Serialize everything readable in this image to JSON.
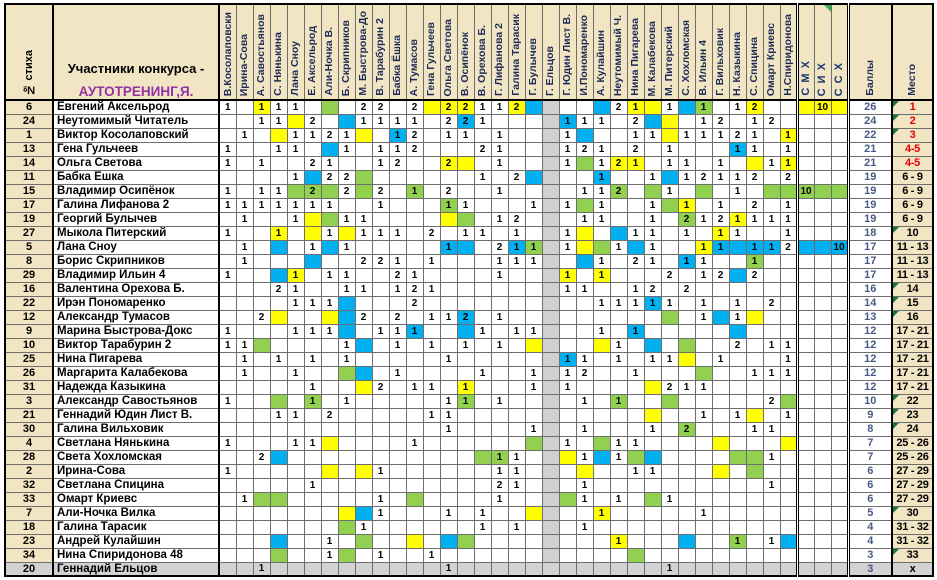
{
  "title": {
    "line1": "Участники конкурса -",
    "line2": "АУТОТРЕНИНГ,Я."
  },
  "headers": {
    "num": "№ стиха",
    "score": "Баллы",
    "place": "Место",
    "special": [
      "С М Х",
      "С И Х",
      "С С Х"
    ],
    "voters": [
      "В.Косолаповски",
      "Ирина-Сова",
      "А. Савостьянов",
      "С. Нянькина",
      "Лана Сноу",
      "Е. Аксельрод",
      "Али-Ночка В.",
      "Б. Скрипников",
      "М. Быстрова-До",
      "В. Тарабурин 2",
      "Бабка Ёшка",
      "А. Тумасов",
      "Гена Гульчеев",
      "Ольга Светова",
      "В. Осипёнок",
      "В. Орехова Б.",
      "Г. Лифанова 2",
      "Галина Тарасик",
      "Г. Булычев",
      "Г. Ельцов",
      "Г. Юдин Лист В.",
      "И.Пономаренко",
      "А. Кулайшин",
      "Неутомимый Ч.",
      "Нина Пигарева",
      "М. Калабекова",
      "М. Питерский",
      "С. Хохломская",
      "В. Ильин 4",
      "Г. Вильховик",
      "Н. Казыкина",
      "С. Спицина",
      "Омарт Криевс",
      "Н.Спиридонова"
    ]
  },
  "colors": {
    "yellow": "#ffff00",
    "green": "#92d050",
    "blue": "#00b0f0",
    "cream": "#f2e5c4",
    "gray_col": "#d0d0d0",
    "gray_row": "#d2d2d2",
    "accent_title": "#9231a8",
    "place_red": "#e80000",
    "score_text": "#475a85"
  },
  "gray_column": 20,
  "chart_data": {
    "type": "table",
    "title": "Участники конкурса - АУТОТРЕНИНГ,Я.",
    "note": "Vote matrix: rows = poems/participants, columns = voters; cell value = points given; colors mark special sympathies (СМХ green, СИХ yellow, ССХ blue)."
  },
  "rows": [
    {
      "num": "6",
      "name": "Евгений Аксельрод",
      "score": "26",
      "place": "1",
      "red": true,
      "marker": true,
      "cells": {
        "1": "1",
        "3": "1y",
        "4": "1",
        "5": "1",
        "7": "g",
        "9": "2",
        "10": "2",
        "12": "2",
        "13": "y",
        "14": "2y",
        "15": "2y",
        "16": "1",
        "17": "1",
        "18": "2y",
        "19": "b",
        "23": "b",
        "24": "2",
        "25": "1y",
        "26": "y",
        "27": "1",
        "28": "b",
        "29": "1g",
        "31": "1",
        "32": "2y"
      },
      "smx": "y",
      "six": "10y",
      "ssx": "y"
    },
    {
      "num": "24",
      "name": "Неутомимый Читатель",
      "score": "24",
      "place": "2",
      "red": true,
      "marker": true,
      "cells": {
        "3": "1",
        "4": "1",
        "5": "y",
        "6": "2",
        "8": "b",
        "9": "1",
        "10": "1",
        "11": "1",
        "12": "1",
        "14": "2",
        "15": "2b",
        "16": "1",
        "21": "1b",
        "22": "1",
        "23": "1",
        "25": "2",
        "26": "b",
        "27": "y",
        "29": "1",
        "30": "2",
        "32": "1",
        "33": "2"
      },
      "smx": "",
      "six": "",
      "ssx": ""
    },
    {
      "num": "1",
      "name": "Виктор Косолаповский",
      "score": "22",
      "place": "3",
      "red": true,
      "marker": true,
      "cells": {
        "2": "1",
        "4": "y",
        "5": "1",
        "6": "1",
        "7": "2",
        "8": "1",
        "9": "y",
        "11": "1b",
        "12": "2",
        "14": "1",
        "15": "1",
        "17": "1",
        "21": "1",
        "22": "b",
        "25": "1",
        "26": "1",
        "27": "y",
        "28": "1",
        "29": "1",
        "30": "1",
        "31": "2",
        "32": "1",
        "34": "1y"
      },
      "smx": "",
      "six": "",
      "ssx": ""
    },
    {
      "num": "13",
      "name": "Гена Гульчеев",
      "score": "21",
      "place": "4-5",
      "red": true,
      "marker": false,
      "cells": {
        "1": "1",
        "4": "1",
        "5": "1",
        "7": "b",
        "8": "1",
        "10": "1",
        "11": "1",
        "12": "2",
        "16": "2",
        "17": "1",
        "21": "1",
        "22": "2",
        "23": "1",
        "25": "2",
        "27": "1",
        "31": "1b",
        "32": "1",
        "34": "1"
      },
      "smx": "",
      "six": "",
      "ssx": ""
    },
    {
      "num": "14",
      "name": "Ольга Светова",
      "score": "21",
      "place": "4-5",
      "red": true,
      "marker": false,
      "cells": {
        "1": "1",
        "3": "1",
        "6": "2",
        "7": "1",
        "10": "1",
        "11": "2",
        "14": "2y",
        "15": "y",
        "17": "1",
        "21": "1",
        "22": "g",
        "23": "1",
        "24": "2y",
        "25": "1y",
        "27": "1",
        "28": "1",
        "30": "1",
        "32": "y",
        "33": "1",
        "34": "1y"
      },
      "smx": "",
      "six": "",
      "ssx": ""
    },
    {
      "num": "11",
      "name": "Бабка Ешка",
      "score": "19",
      "place": "6 - 9",
      "red": false,
      "marker": false,
      "cells": {
        "5": "1",
        "6": "b",
        "7": "2",
        "8": "2",
        "9": "g",
        "16": "1",
        "18": "2",
        "19": "b",
        "23": "1b",
        "26": "1",
        "27": "b",
        "28": "1",
        "29": "2",
        "30": "1",
        "31": "1",
        "32": "2",
        "34": "2"
      },
      "smx": "",
      "six": "",
      "ssx": ""
    },
    {
      "num": "15",
      "name": "Владимир Осипёнок",
      "score": "19",
      "place": "6 - 9",
      "red": false,
      "marker": false,
      "cells": {
        "1": "1",
        "3": "1",
        "4": "1",
        "5": "g",
        "6": "2g",
        "7": "g",
        "8": "2",
        "9": "g",
        "10": "2",
        "12": "1g",
        "14": "2",
        "17": "1",
        "22": "1",
        "23": "1",
        "24": "2g",
        "26": "g",
        "27": "1",
        "29": "g",
        "31": "1",
        "33": "g",
        "34": "g"
      },
      "smx": "10g",
      "six": "g",
      "ssx": "g"
    },
    {
      "num": "17",
      "name": "Галина Лифанова 2",
      "score": "19",
      "place": "6 - 9",
      "red": false,
      "marker": false,
      "cells": {
        "1": "1",
        "2": "1",
        "3": "1",
        "4": "1",
        "5": "1",
        "6": "1",
        "7": "1",
        "10": "1",
        "14": "1g",
        "15": "1",
        "19": "1",
        "21": "1",
        "22": "g",
        "23": "1",
        "26": "1",
        "27": "g",
        "28": "1y",
        "30": "1",
        "32": "2",
        "34": "1"
      },
      "smx": "",
      "six": "",
      "ssx": ""
    },
    {
      "num": "19",
      "name": "Георгий Булычев",
      "score": "19",
      "place": "6 - 9",
      "red": false,
      "marker": false,
      "cells": {
        "2": "1",
        "5": "1",
        "6": "y",
        "7": "g",
        "8": "1",
        "9": "1",
        "14": "y",
        "15": "g",
        "17": "1",
        "18": "2",
        "22": "1",
        "23": "1",
        "26": "1",
        "28": "2g",
        "29": "1",
        "30": "2",
        "31": "1y",
        "32": "1",
        "33": "1",
        "34": "1"
      },
      "smx": "",
      "six": "",
      "ssx": ""
    },
    {
      "num": "27",
      "name": "Мыкола Питерский",
      "score": "18",
      "place": "10",
      "red": false,
      "marker": true,
      "cells": {
        "1": "1",
        "4": "1y",
        "6": "y",
        "7": "1",
        "8": "y",
        "9": "1",
        "10": "1",
        "11": "1",
        "13": "2",
        "15": "1",
        "16": "1",
        "18": "1",
        "21": "1",
        "22": "y",
        "24": "b",
        "25": "1",
        "26": "1",
        "28": "1",
        "30": "1y",
        "31": "1",
        "34": "1"
      },
      "smx": "",
      "six": "",
      "ssx": ""
    },
    {
      "num": "5",
      "name": "Лана Сноу",
      "score": "17",
      "place": "11 - 13",
      "red": false,
      "marker": false,
      "cells": {
        "2": "1",
        "4": "b",
        "6": "1",
        "7": "b",
        "8": "1",
        "14": "1b",
        "15": "b",
        "17": "2",
        "18": "1b",
        "19": "1g",
        "21": "1",
        "22": "y",
        "23": "g",
        "24": "1",
        "25": "b",
        "26": "1",
        "29": "1y",
        "30": "1b",
        "31": "b",
        "32": "1b",
        "33": "1b",
        "34": "2"
      },
      "smx": "b",
      "six": "b",
      "ssx": "10b"
    },
    {
      "num": "8",
      "name": "Борис Скрипников",
      "score": "17",
      "place": "11 - 13",
      "red": false,
      "marker": false,
      "cells": {
        "2": "1",
        "6": "b",
        "9": "2",
        "10": "2",
        "11": "1",
        "13": "1",
        "17": "1",
        "18": "1",
        "19": "1",
        "22": "b",
        "23": "1",
        "25": "2",
        "26": "1",
        "28": "1b",
        "29": "1",
        "32": "1g"
      },
      "smx": "",
      "six": "",
      "ssx": ""
    },
    {
      "num": "29",
      "name": "Владимир Ильин 4",
      "score": "17",
      "place": "11 - 13",
      "red": false,
      "marker": false,
      "cells": {
        "1": "1",
        "4": "b",
        "5": "1y",
        "7": "1",
        "8": "1",
        "11": "2",
        "12": "1",
        "17": "1",
        "21": "1y",
        "23": "1y",
        "27": "2",
        "29": "1",
        "30": "2",
        "31": "b",
        "32": "2"
      },
      "smx": "",
      "six": "",
      "ssx": ""
    },
    {
      "num": "16",
      "name": "Валентина Орехова Б.",
      "score": "16",
      "place": "14",
      "red": false,
      "marker": true,
      "cells": {
        "4": "2",
        "5": "1",
        "8": "1",
        "9": "1",
        "11": "1",
        "12": "2",
        "13": "1",
        "21": "1",
        "22": "1",
        "25": "1",
        "26": "2",
        "28": "2"
      },
      "smx": "",
      "six": "",
      "ssx": ""
    },
    {
      "num": "22",
      "name": "Ирэн Пономаренко",
      "score": "14",
      "place": "15",
      "red": false,
      "marker": true,
      "cells": {
        "5": "1",
        "6": "1",
        "7": "1",
        "8": "b",
        "12": "2",
        "23": "1",
        "24": "1",
        "25": "1",
        "26": "1b",
        "27": "1",
        "29": "1",
        "31": "1",
        "33": "2"
      },
      "smx": "",
      "six": "",
      "ssx": ""
    },
    {
      "num": "12",
      "name": "Александр Тумасов",
      "score": "13",
      "place": "16",
      "red": false,
      "marker": true,
      "cells": {
        "3": "2",
        "4": "y",
        "7": "y",
        "8": "b",
        "9": "2",
        "11": "2",
        "13": "1",
        "14": "1",
        "15": "2b",
        "17": "1",
        "27": "g",
        "29": "1",
        "30": "b",
        "31": "1",
        "32": "y"
      },
      "smx": "",
      "six": "",
      "ssx": ""
    },
    {
      "num": "9",
      "name": "Марина Быстрова-Докс",
      "score": "12",
      "place": "17 - 21",
      "red": false,
      "marker": false,
      "cells": {
        "1": "1",
        "5": "1",
        "6": "1",
        "7": "1",
        "8": "b",
        "10": "1",
        "11": "1",
        "12": "1b",
        "15": "b",
        "16": "1",
        "18": "1",
        "19": "1",
        "23": "1",
        "25": "1b",
        "31": "b"
      },
      "smx": "",
      "six": "",
      "ssx": ""
    },
    {
      "num": "10",
      "name": "Виктор Тарабурин 2",
      "score": "12",
      "place": "17 - 21",
      "red": false,
      "marker": false,
      "cells": {
        "1": "1",
        "2": "1",
        "3": "g",
        "8": "1",
        "9": "b",
        "11": "1",
        "13": "1",
        "15": "1",
        "17": "1",
        "19": "y",
        "23": "y",
        "24": "1",
        "26": "b",
        "28": "g",
        "31": "2",
        "33": "1",
        "34": "1"
      },
      "smx": "",
      "six": "",
      "ssx": ""
    },
    {
      "num": "25",
      "name": "Нина Пигарева",
      "score": "12",
      "place": "17 - 21",
      "red": false,
      "marker": false,
      "cells": {
        "2": "1",
        "4": "1",
        "6": "1",
        "8": "1",
        "14": "1",
        "21": "1b",
        "22": "1",
        "24": "1",
        "26": "1",
        "27": "1",
        "28": "y",
        "30": "1",
        "34": "1"
      },
      "smx": "",
      "six": "",
      "ssx": ""
    },
    {
      "num": "26",
      "name": "Маргарита Калабекова",
      "score": "12",
      "place": "17 - 21",
      "red": false,
      "marker": false,
      "cells": {
        "2": "1",
        "5": "1",
        "8": "g",
        "9": "b",
        "11": "1",
        "16": "1",
        "19": "1",
        "21": "1",
        "22": "2",
        "25": "1",
        "29": "g",
        "32": "1",
        "33": "1",
        "34": "1"
      },
      "smx": "",
      "six": "",
      "ssx": ""
    },
    {
      "num": "31",
      "name": "Надежда Казыкина",
      "score": "12",
      "place": "17 - 21",
      "red": false,
      "marker": false,
      "cells": {
        "6": "1",
        "9": "y",
        "10": "2",
        "12": "1",
        "13": "1",
        "15": "1y",
        "19": "1",
        "21": "1",
        "26": "y",
        "27": "2",
        "28": "1",
        "29": "1"
      },
      "smx": "",
      "six": "",
      "ssx": ""
    },
    {
      "num": "3",
      "name": "Александр Савостьянов",
      "score": "10",
      "place": "22",
      "red": false,
      "marker": true,
      "cells": {
        "1": "1",
        "4": "g",
        "6": "1g",
        "8": "1",
        "14": "1",
        "15": "1g",
        "17": "1",
        "22": "1",
        "24": "1g",
        "27": "g",
        "33": "2",
        "34": "g"
      },
      "smx": "",
      "six": "",
      "ssx": ""
    },
    {
      "num": "21",
      "name": "Геннадий Юдин Лист В.",
      "score": "9",
      "place": "23",
      "red": false,
      "marker": true,
      "cells": {
        "4": "1",
        "5": "1",
        "7": "2",
        "13": "1",
        "14": "1",
        "26": "y",
        "29": "1",
        "31": "1",
        "32": "y",
        "34": "1"
      },
      "smx": "",
      "six": "",
      "ssx": ""
    },
    {
      "num": "30",
      "name": "Галина Вильховик",
      "score": "8",
      "place": "24",
      "red": false,
      "marker": true,
      "cells": {
        "14": "1",
        "19": "1",
        "22": "1",
        "26": "1",
        "28": "2g",
        "32": "1",
        "33": "1"
      },
      "smx": "",
      "six": "",
      "ssx": ""
    },
    {
      "num": "4",
      "name": "Светлана Нянькина",
      "score": "7",
      "place": "25 - 26",
      "red": false,
      "marker": false,
      "cells": {
        "1": "1",
        "5": "1",
        "6": "1",
        "7": "y",
        "12": "1",
        "19": "g",
        "21": "1",
        "23": "g",
        "24": "1",
        "25": "1",
        "30": "y",
        "34": "y"
      },
      "smx": "",
      "six": "",
      "ssx": ""
    },
    {
      "num": "28",
      "name": "Света Хохломская",
      "score": "7",
      "place": "25 - 26",
      "red": false,
      "marker": false,
      "cells": {
        "3": "2",
        "4": "b",
        "16": "g",
        "17": "1g",
        "18": "1",
        "21": "y",
        "22": "1",
        "23": "b",
        "24": "1",
        "25": "g",
        "26": "b",
        "31": "g",
        "32": "g",
        "33": "1"
      },
      "smx": "",
      "six": "",
      "ssx": ""
    },
    {
      "num": "2",
      "name": "Ирина-Сова",
      "score": "6",
      "place": "27 - 29",
      "red": false,
      "marker": false,
      "cells": {
        "1": "1",
        "7": "y",
        "9": "y",
        "10": "1",
        "17": "1",
        "18": "1",
        "22": "y",
        "25": "1",
        "26": "1",
        "30": "y",
        "32": "g"
      },
      "smx": "",
      "six": "",
      "ssx": ""
    },
    {
      "num": "32",
      "name": "Светлана Спицина",
      "score": "6",
      "place": "27 - 29",
      "red": false,
      "marker": false,
      "cells": {
        "6": "1",
        "17": "2",
        "18": "1",
        "22": "1",
        "33": "1"
      },
      "smx": "",
      "six": "",
      "ssx": ""
    },
    {
      "num": "33",
      "name": "Омарт Криевс",
      "score": "6",
      "place": "27 - 29",
      "red": false,
      "marker": false,
      "cells": {
        "2": "1",
        "3": "g",
        "4": "g",
        "10": "1",
        "12": "g",
        "17": "1",
        "21": "g",
        "22": "1",
        "24": "1",
        "26": "g",
        "27": "1"
      },
      "smx": "",
      "six": "",
      "ssx": ""
    },
    {
      "num": "7",
      "name": "Али-Ночка Вилка",
      "score": "5",
      "place": "30",
      "red": false,
      "marker": true,
      "cells": {
        "8": "y",
        "9": "b",
        "10": "1",
        "14": "1",
        "16": "1",
        "19": "y",
        "23": "1y",
        "29": "1"
      },
      "smx": "",
      "six": "",
      "ssx": ""
    },
    {
      "num": "18",
      "name": "Галина Тарасик",
      "score": "4",
      "place": "31 - 32",
      "red": false,
      "marker": false,
      "cells": {
        "8": "g",
        "9": "1",
        "16": "1",
        "18": "1",
        "22": "1"
      },
      "smx": "",
      "six": "",
      "ssx": ""
    },
    {
      "num": "23",
      "name": "Андрей Кулайшин",
      "score": "4",
      "place": "31 - 32",
      "red": false,
      "marker": false,
      "cells": {
        "4": "b",
        "7": "1",
        "9": "g",
        "12": "y",
        "14": "b",
        "15": "g",
        "24": "1y",
        "28": "b",
        "31": "1g",
        "33": "1",
        "34": "b"
      },
      "smx": "",
      "six": "",
      "ssx": ""
    },
    {
      "num": "34",
      "name": "Нина Спиридонова 48",
      "score": "3",
      "place": "33",
      "red": false,
      "marker": true,
      "cells": {
        "4": "g",
        "7": "1",
        "8": "g",
        "10": "1",
        "13": "1",
        "25": "g"
      },
      "smx": "",
      "six": "",
      "ssx": ""
    },
    {
      "num": "20",
      "name": "Геннадий Ельцов",
      "score": "3",
      "place": "х",
      "red": false,
      "marker": false,
      "gray": true,
      "cells": {
        "3": "1",
        "14": "1",
        "27": "1"
      },
      "smx": "",
      "six": "",
      "ssx": ""
    }
  ]
}
